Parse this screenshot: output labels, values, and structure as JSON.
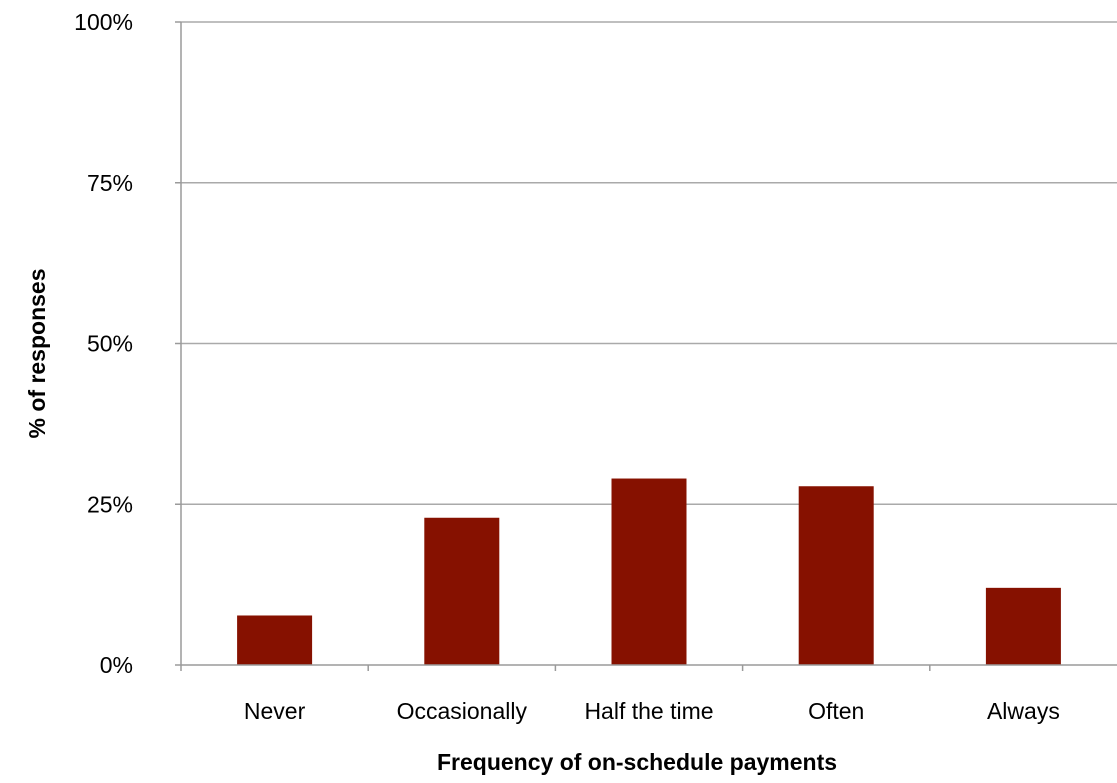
{
  "chart_data": {
    "type": "bar",
    "categories": [
      "Never",
      "Occasionally",
      "Half the time",
      "Often",
      "Always"
    ],
    "values": [
      7.7,
      22.9,
      29.0,
      27.8,
      12.0
    ],
    "xlabel": "Frequency of on-schedule payments",
    "ylabel": "% of responses",
    "ylim": [
      0,
      100
    ],
    "yticks": [
      0,
      25,
      50,
      75,
      100
    ],
    "ytick_labels": [
      "0%",
      "25%",
      "50%",
      "75%",
      "100%"
    ],
    "grid": true,
    "legend": "none",
    "bar_color": "#861100"
  }
}
